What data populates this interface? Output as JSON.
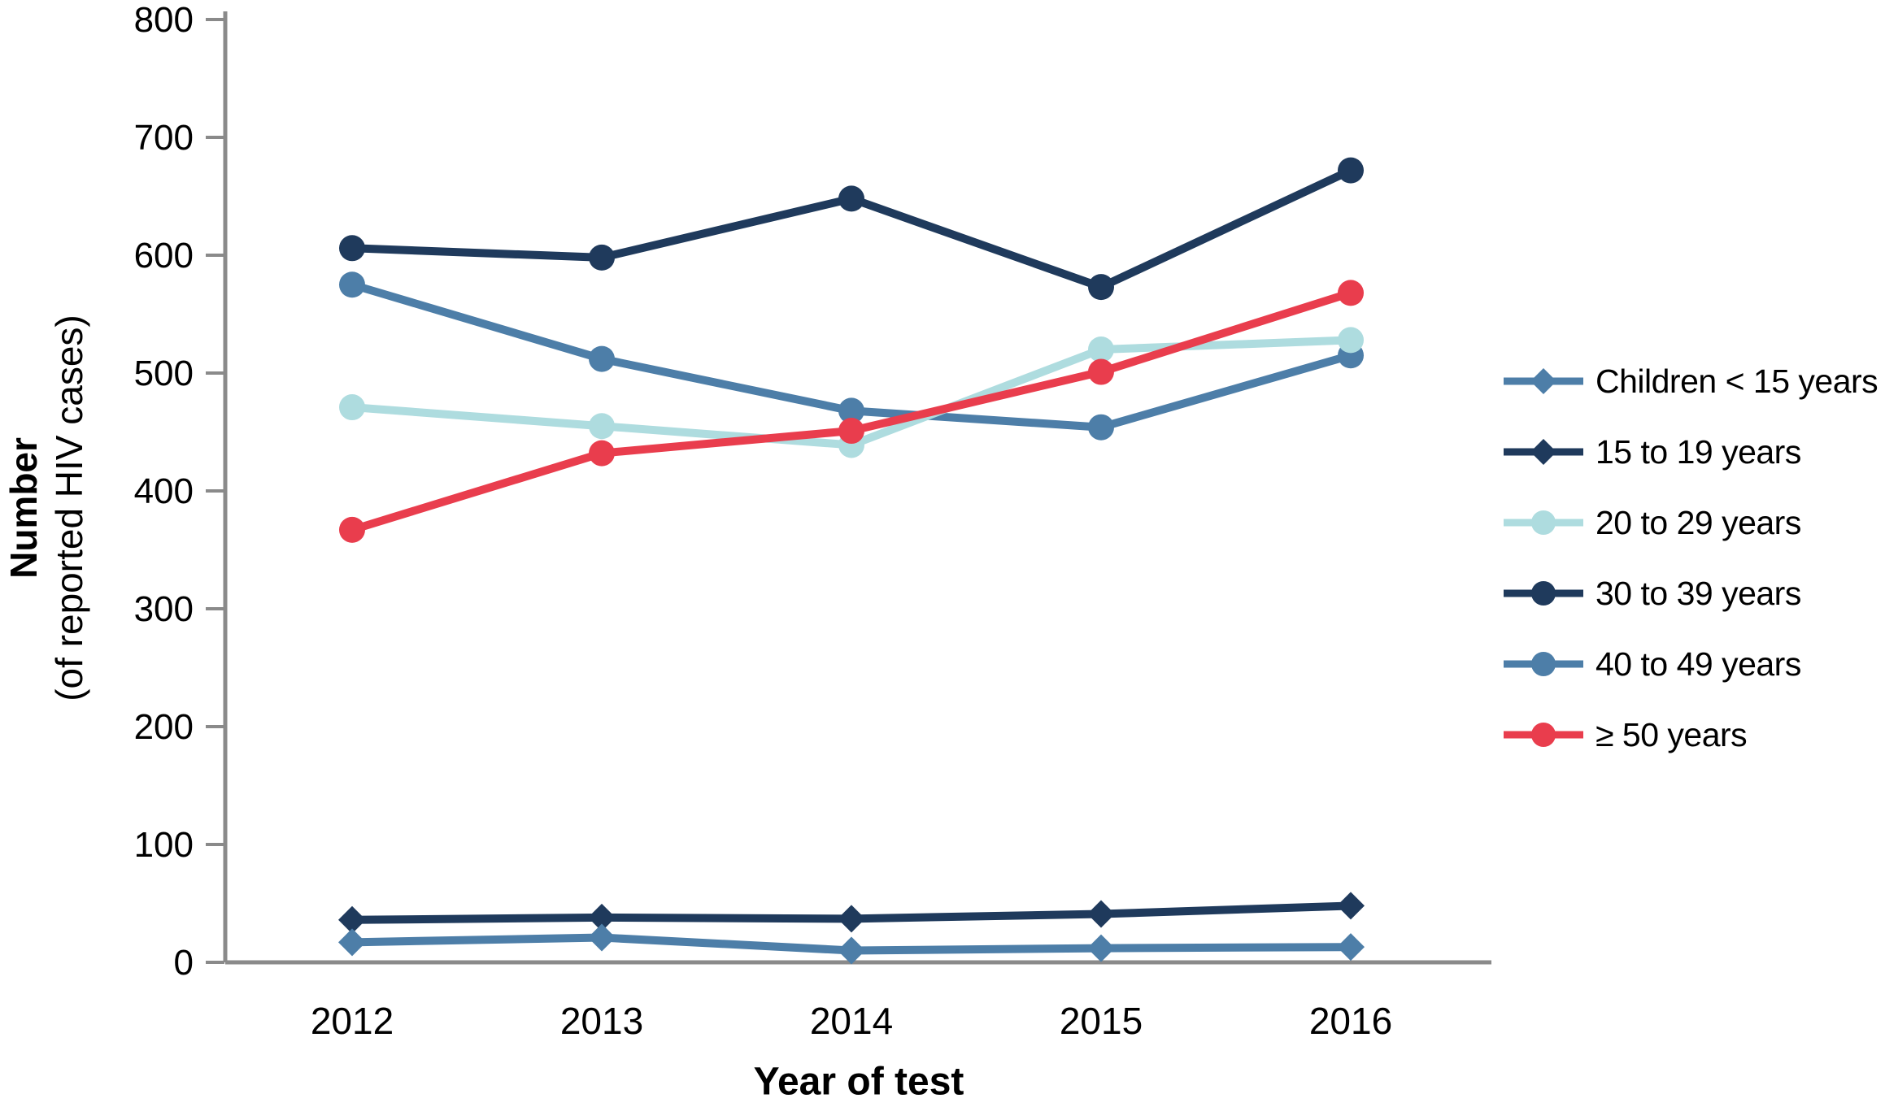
{
  "chart_data": {
    "type": "line",
    "title": "",
    "x": [
      "2012",
      "2013",
      "2014",
      "2015",
      "2016"
    ],
    "xlabel": "Year of test",
    "ylabel": {
      "line1": "Number",
      "line2": "(of reported HIV cases)"
    },
    "ylim": [
      0,
      800
    ],
    "yticks": [
      "0",
      "100",
      "200",
      "300",
      "400",
      "500",
      "600",
      "700",
      "800"
    ],
    "grid": false,
    "legend_position": "right-middle",
    "axis_color": "#8A8A8A",
    "text_color": "#000000",
    "background_color": "#ffffff",
    "series": [
      {
        "name": "Children < 15 years",
        "marker": "diamond",
        "color": "#4D7EA8",
        "values": [
          17,
          21,
          10,
          12,
          13
        ]
      },
      {
        "name": "15 to 19 years",
        "marker": "diamond",
        "color": "#1F3A5C",
        "values": [
          36,
          38,
          37,
          41,
          48
        ]
      },
      {
        "name": "20 to 29 years",
        "marker": "circle",
        "color": "#AEDCDF",
        "values": [
          471,
          455,
          439,
          520,
          528
        ]
      },
      {
        "name": "30 to 39 years",
        "marker": "circle",
        "color": "#1F3A5C",
        "values": [
          606,
          598,
          648,
          573,
          672
        ]
      },
      {
        "name": "40 to 49 years",
        "marker": "circle",
        "color": "#4D7EA8",
        "values": [
          575,
          512,
          468,
          454,
          515
        ]
      },
      {
        "name": "≥ 50 years",
        "marker": "circle",
        "color": "#E93D4D",
        "values": [
          367,
          432,
          451,
          501,
          568
        ]
      }
    ]
  }
}
